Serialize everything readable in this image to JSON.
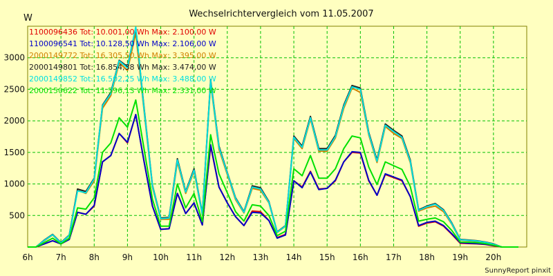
{
  "chart_data": {
    "type": "line",
    "title": "Wechselrichtervergleich vom 11.05.2007",
    "ylabel": "W",
    "footer": "SunnyReport pinxit",
    "ylim": [
      0,
      3500
    ],
    "yticks": [
      500,
      1000,
      1500,
      2000,
      2500,
      3000
    ],
    "x_tick_labels": [
      "6h",
      "7h",
      "8h",
      "9h",
      "10h",
      "11h",
      "12h",
      "13h",
      "14h",
      "15h",
      "16h",
      "17h",
      "18h",
      "19h",
      "20h"
    ],
    "x": [
      6.0,
      6.25,
      6.5,
      6.75,
      7.0,
      7.25,
      7.5,
      7.75,
      8.0,
      8.25,
      8.5,
      8.75,
      9.0,
      9.25,
      9.5,
      9.75,
      10.0,
      10.25,
      10.5,
      10.75,
      11.0,
      11.25,
      11.5,
      11.75,
      12.0,
      12.25,
      12.5,
      12.75,
      13.0,
      13.25,
      13.5,
      13.75,
      14.0,
      14.25,
      14.5,
      14.75,
      15.0,
      15.25,
      15.5,
      15.75,
      16.0,
      16.25,
      16.5,
      16.75,
      17.0,
      17.25,
      17.5,
      17.75,
      18.0,
      18.25,
      18.5,
      18.75,
      19.0,
      19.25,
      19.5,
      19.75,
      20.0,
      20.25,
      20.5,
      20.75
    ],
    "grid": true,
    "legend_position": "top-left",
    "series": [
      {
        "name": "1100096436 Tot: 10.001,00 Wh Max: 2.100,00 W",
        "color": "#E00000",
        "values": [
          0,
          0,
          50,
          100,
          50,
          120,
          550,
          520,
          650,
          1350,
          1450,
          1800,
          1650,
          2100,
          1350,
          650,
          280,
          290,
          850,
          530,
          700,
          350,
          1600,
          950,
          700,
          480,
          340,
          570,
          560,
          420,
          150,
          200,
          1050,
          950,
          1200,
          920,
          930,
          1050,
          1350,
          1500,
          1490,
          1050,
          820,
          1150,
          1100,
          1050,
          800,
          330,
          380,
          400,
          330,
          200,
          60,
          55,
          50,
          40,
          20,
          0,
          0,
          0
        ]
      },
      {
        "name": "1100096541 Tot: 10.128,50 Wh Max: 2.106,00 W",
        "color": "#0000C8",
        "values": [
          0,
          0,
          50,
          100,
          50,
          120,
          550,
          520,
          660,
          1350,
          1450,
          1800,
          1660,
          2100,
          1350,
          650,
          280,
          290,
          850,
          530,
          700,
          350,
          1620,
          950,
          700,
          480,
          340,
          550,
          540,
          420,
          140,
          190,
          1050,
          940,
          1190,
          910,
          930,
          1060,
          1350,
          1510,
          1500,
          1060,
          820,
          1160,
          1110,
          1060,
          800,
          340,
          390,
          410,
          340,
          210,
          70,
          60,
          55,
          45,
          25,
          0,
          0,
          0
        ]
      },
      {
        "name": "2000149772 Tot: 16.305,50 Wh Max: 3.395,00 W",
        "color": "#D08000",
        "values": [
          0,
          0,
          100,
          190,
          60,
          180,
          900,
          850,
          1050,
          2200,
          2400,
          2920,
          2800,
          3395,
          2150,
          950,
          440,
          440,
          1350,
          850,
          1200,
          510,
          2600,
          1550,
          1150,
          750,
          540,
          930,
          900,
          700,
          230,
          330,
          1720,
          1560,
          2030,
          1520,
          1520,
          1730,
          2200,
          2520,
          2450,
          1780,
          1340,
          1910,
          1800,
          1720,
          1340,
          570,
          620,
          650,
          560,
          360,
          110,
          100,
          90,
          70,
          40,
          0,
          0,
          0
        ]
      },
      {
        "name": "2000149801 Tot: 16.854,38 Wh Max: 3.474,00 W",
        "color": "#202020",
        "values": [
          0,
          0,
          110,
          200,
          70,
          190,
          920,
          880,
          1090,
          2250,
          2450,
          2960,
          2860,
          3474,
          2200,
          980,
          460,
          470,
          1400,
          880,
          1240,
          530,
          2650,
          1600,
          1180,
          780,
          560,
          970,
          940,
          720,
          240,
          340,
          1760,
          1600,
          2070,
          1560,
          1560,
          1770,
          2250,
          2560,
          2520,
          1820,
          1380,
          1950,
          1850,
          1760,
          1380,
          590,
          650,
          690,
          590,
          380,
          120,
          110,
          100,
          80,
          50,
          0,
          0,
          0
        ]
      },
      {
        "name": "2000149852 Tot: 16.502,25 Wh Max: 3.488,00 W",
        "color": "#00E0E0",
        "values": [
          0,
          0,
          105,
          195,
          65,
          185,
          890,
          860,
          1080,
          2240,
          2430,
          2950,
          2840,
          3488,
          2180,
          970,
          450,
          460,
          1380,
          870,
          1220,
          520,
          2630,
          1580,
          1170,
          770,
          550,
          950,
          920,
          710,
          235,
          335,
          1740,
          1580,
          2050,
          1540,
          1540,
          1750,
          2230,
          2540,
          2500,
          1800,
          1360,
          1930,
          1830,
          1740,
          1360,
          580,
          640,
          680,
          580,
          370,
          115,
          105,
          95,
          75,
          45,
          0,
          0,
          0
        ]
      },
      {
        "name": "2000150622 Tot: 11.596,13 Wh Max: 2.331,00 W",
        "color": "#00E000",
        "values": [
          0,
          0,
          70,
          140,
          50,
          140,
          620,
          600,
          780,
          1500,
          1650,
          2050,
          1900,
          2331,
          1550,
          760,
          330,
          330,
          1000,
          620,
          850,
          400,
          1780,
          1160,
          860,
          560,
          410,
          670,
          650,
          500,
          180,
          250,
          1240,
          1130,
          1450,
          1090,
          1090,
          1240,
          1560,
          1760,
          1730,
          1270,
          990,
          1350,
          1290,
          1230,
          960,
          410,
          440,
          460,
          400,
          260,
          80,
          75,
          70,
          55,
          30,
          0,
          0,
          0
        ]
      }
    ]
  }
}
